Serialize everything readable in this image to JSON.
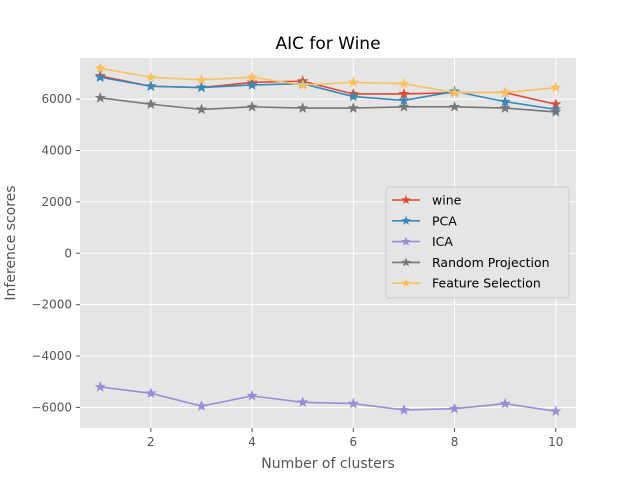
{
  "chart_data": {
    "type": "line",
    "title": "AIC for Wine",
    "xlabel": "Number of clusters",
    "ylabel": "Inference scores",
    "x": [
      1,
      2,
      3,
      4,
      5,
      6,
      7,
      8,
      9,
      10
    ],
    "xlim": [
      0.6,
      10.4
    ],
    "ylim": [
      -6800,
      7600
    ],
    "xticks": [
      2,
      4,
      6,
      8,
      10
    ],
    "yticks": [
      -6000,
      -4000,
      -2000,
      0,
      2000,
      4000,
      6000
    ],
    "grid": true,
    "legend_position": "center-right",
    "marker": "star",
    "series": [
      {
        "name": "wine",
        "color": "#E24A33",
        "values": [
          6900,
          6500,
          6450,
          6650,
          6700,
          6200,
          6200,
          6250,
          6250,
          5800
        ]
      },
      {
        "name": "PCA",
        "color": "#348ABD",
        "values": [
          6850,
          6500,
          6450,
          6550,
          6600,
          6100,
          5950,
          6300,
          5900,
          5600
        ]
      },
      {
        "name": "ICA",
        "color": "#988ED5",
        "values": [
          -5200,
          -5450,
          -5950,
          -5550,
          -5800,
          -5850,
          -6100,
          -6050,
          -5850,
          -6150
        ]
      },
      {
        "name": "Random Projection",
        "color": "#777777",
        "values": [
          6050,
          5800,
          5600,
          5700,
          5650,
          5650,
          5700,
          5700,
          5650,
          5500
        ]
      },
      {
        "name": "Feature Selection",
        "color": "#FBC15E",
        "values": [
          7200,
          6850,
          6750,
          6850,
          6550,
          6650,
          6600,
          6250,
          6250,
          6450
        ]
      }
    ]
  }
}
